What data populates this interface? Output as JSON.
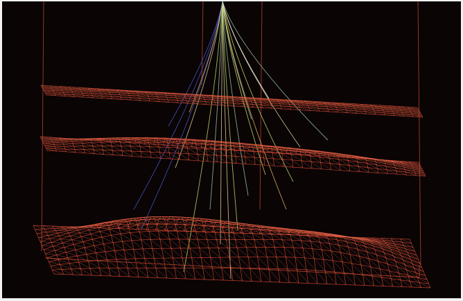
{
  "image": {
    "background_color": "#0a0405",
    "frame_color": "#f2f2f2",
    "mesh_color": "#d8472f",
    "mesh_highlight_color": "#f07a5a",
    "cable_colors": [
      "#e8e0a0",
      "#9fd0b0",
      "#4a5ad0",
      "#c8e870",
      "#f0c060",
      "#ffffff"
    ],
    "frame_line_color": "#c84a30"
  }
}
